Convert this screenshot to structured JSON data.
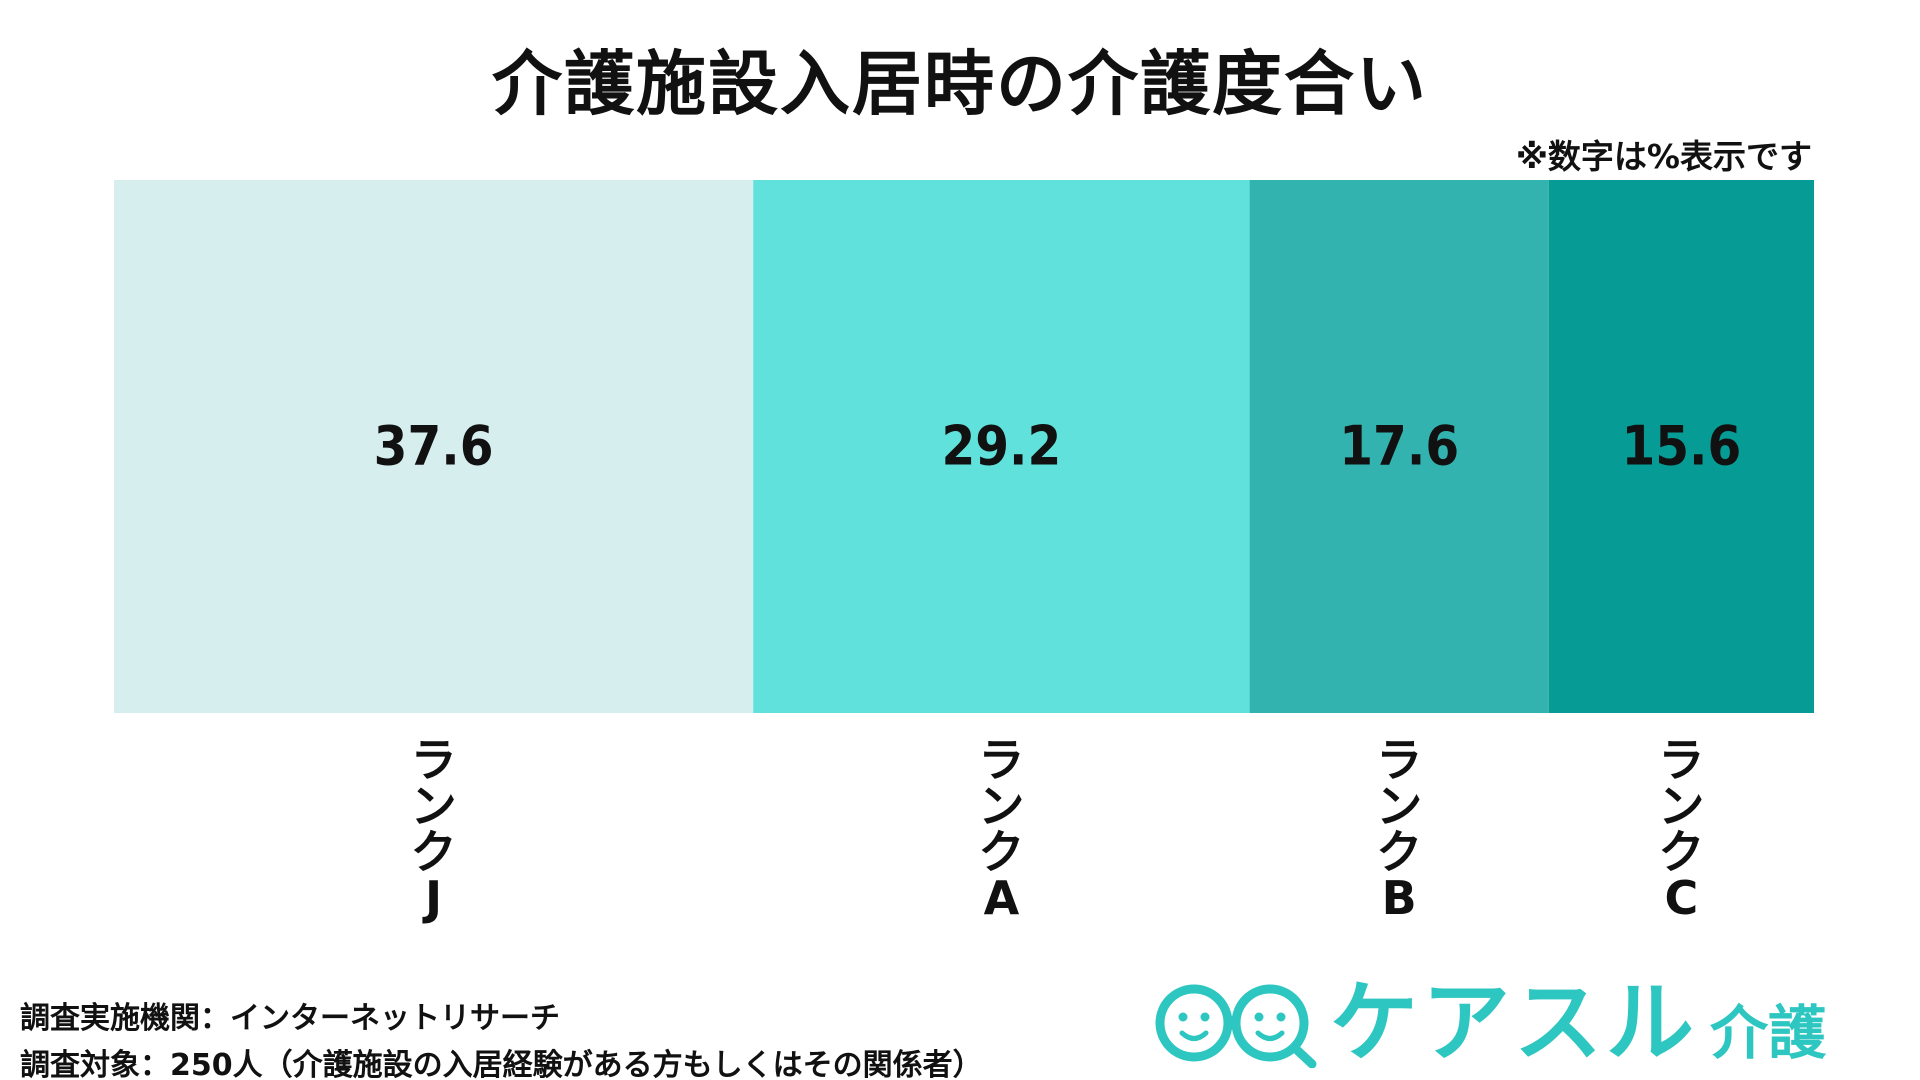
{
  "header": {
    "title": "介護施設入居時の介護度合い",
    "note": "※数字は%表示です"
  },
  "chart_data": {
    "type": "bar",
    "stacked": true,
    "orientation": "horizontal",
    "categories": [
      "ランクJ",
      "ランクA",
      "ランクB",
      "ランクC"
    ],
    "label_lines": [
      [
        "ラ",
        "ン",
        "ク",
        "J"
      ],
      [
        "ラ",
        "ン",
        "ク",
        "A"
      ],
      [
        "ラ",
        "ン",
        "ク",
        "B"
      ],
      [
        "ラ",
        "ン",
        "ク",
        "C"
      ]
    ],
    "values": [
      37.6,
      29.2,
      17.6,
      15.6
    ],
    "value_labels": [
      "37.6",
      "29.2",
      "17.6",
      "15.6"
    ],
    "colors": [
      "#d6efee",
      "#60e1dc",
      "#33b3af",
      "#079b95"
    ],
    "unit": "%",
    "legend": "none",
    "grid": false
  },
  "footer": {
    "survey_org": "調査実施機関：インターネットリサーチ",
    "survey_target": "調査対象：250人（介護施設の入居経験がある方もしくはその関係者）"
  },
  "logo": {
    "text": "ケアスル",
    "sub": "介護",
    "color": "#2dc6c0"
  }
}
